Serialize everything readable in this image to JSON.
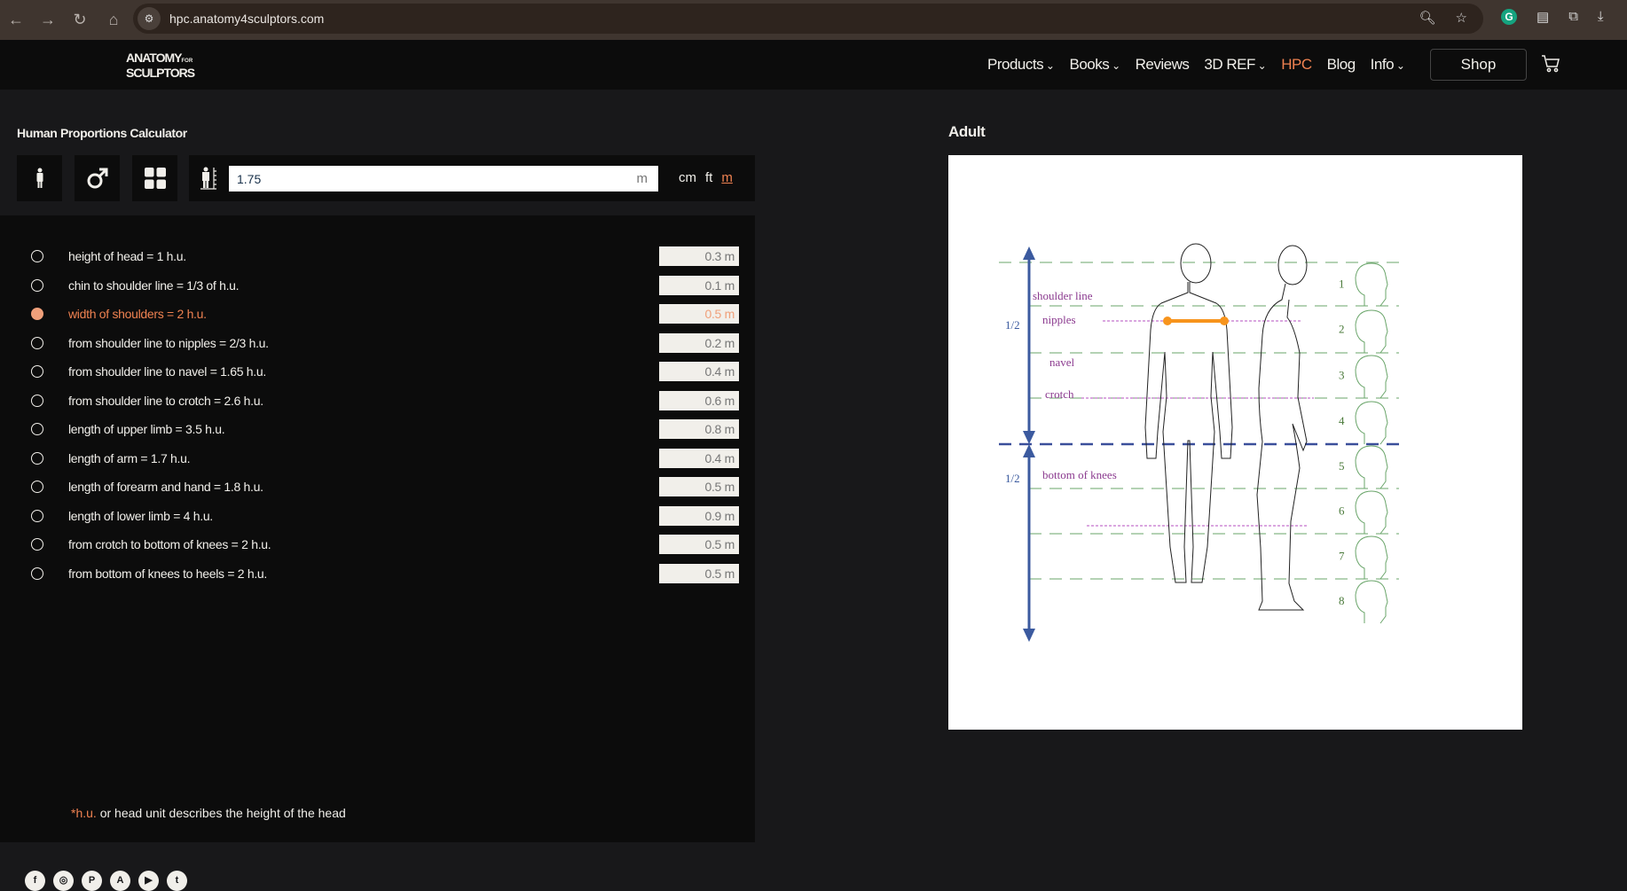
{
  "browser": {
    "url": "hpc.anatomy4sculptors.com"
  },
  "nav": {
    "logo_line1": "ANATOMY",
    "logo_for": "FOR",
    "logo_line2": "SCULPTORS",
    "items": [
      {
        "label": "Products",
        "dropdown": true
      },
      {
        "label": "Books",
        "dropdown": true
      },
      {
        "label": "Reviews"
      },
      {
        "label": "3D REF",
        "dropdown": true
      },
      {
        "label": "HPC",
        "active": true
      },
      {
        "label": "Blog"
      },
      {
        "label": "Info",
        "dropdown": true
      }
    ],
    "shop": "Shop"
  },
  "calculator": {
    "title": "Human Proportions Calculator",
    "height_value": "1.75",
    "height_unit": "m",
    "units": [
      "cm",
      "ft",
      "m"
    ],
    "selected_unit": "m"
  },
  "proportions": [
    {
      "label": "height of head = 1 h.u.",
      "value": "0.3 m"
    },
    {
      "label": "chin to shoulder line = 1/3 of h.u.",
      "value": "0.1 m"
    },
    {
      "label": "width of shoulders = 2 h.u.",
      "value": "0.5 m",
      "selected": true
    },
    {
      "label": "from shoulder line to nipples = 2/3 h.u.",
      "value": "0.2 m"
    },
    {
      "label": "from shoulder line to navel = 1.65 h.u.",
      "value": "0.4 m"
    },
    {
      "label": "from shoulder line to crotch = 2.6 h.u.",
      "value": "0.6 m"
    },
    {
      "label": "length of upper limb = 3.5 h.u.",
      "value": "0.8 m"
    },
    {
      "label": "length of arm = 1.7 h.u.",
      "value": "0.4 m"
    },
    {
      "label": "length of forearm and hand = 1.8 h.u.",
      "value": "0.5 m"
    },
    {
      "label": "length of lower limb = 4 h.u.",
      "value": "0.9 m"
    },
    {
      "label": "from crotch to bottom of knees = 2 h.u.",
      "value": "0.5 m"
    },
    {
      "label": "from bottom of knees to heels = 2 h.u.",
      "value": "0.5 m"
    }
  ],
  "note": {
    "hu": "*h.u.",
    "text": " or head unit describes the height of the head"
  },
  "figure": {
    "title": "Adult",
    "labels": {
      "shoulder": "shoulder line",
      "nipples": "nipples",
      "navel": "navel",
      "crotch": "crotch",
      "knees": "bottom of knees",
      "half_top": "1/2",
      "half_bottom": "1/2"
    },
    "head_numbers": [
      "1",
      "2",
      "3",
      "4",
      "5",
      "6",
      "7",
      "8"
    ],
    "highlight_color": "#f7941d",
    "accent": "#ef8251"
  },
  "social": [
    "facebook",
    "instagram",
    "pinterest",
    "artstation",
    "youtube",
    "twitter"
  ]
}
